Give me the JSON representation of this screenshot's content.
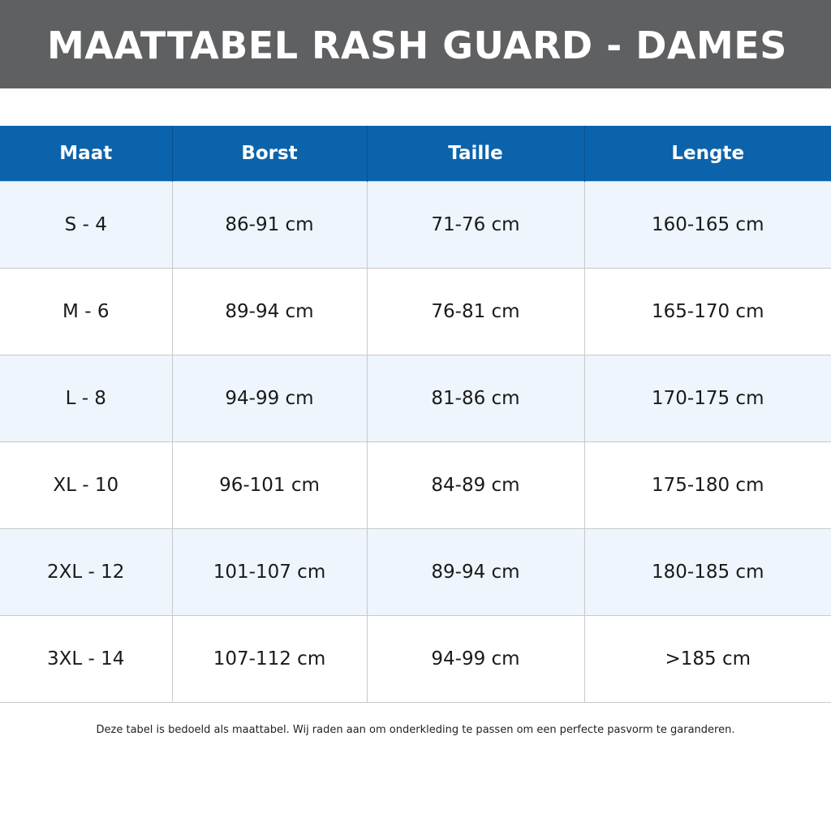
{
  "header": {
    "title": "MAATTABEL RASH GUARD - DAMES"
  },
  "table": {
    "columns": [
      "Maat",
      "Borst",
      "Taille",
      "Lengte"
    ],
    "rows": [
      [
        "S - 4",
        "86-91 cm",
        "71-76 cm",
        "160-165 cm"
      ],
      [
        "M - 6",
        "89-94 cm",
        "76-81 cm",
        "165-170 cm"
      ],
      [
        "L - 8",
        "94-99 cm",
        "81-86 cm",
        "170-175 cm"
      ],
      [
        "XL - 10",
        "96-101 cm",
        "84-89 cm",
        "175-180 cm"
      ],
      [
        "2XL - 12",
        "101-107 cm",
        "89-94 cm",
        "180-185 cm"
      ],
      [
        "3XL - 14",
        "107-112 cm",
        "94-99 cm",
        ">185 cm"
      ]
    ]
  },
  "footer": {
    "note": "Deze tabel is bedoeld als maattabel. Wij raden aan om onderkleding te passen om een perfecte pasvorm te garanderen."
  },
  "colors": {
    "title_bar": "#5f6062",
    "header_row": "#0b63ac",
    "row_tint": "#eef5fc",
    "row_plain": "#ffffff",
    "grid_line": "#c9c9c9"
  }
}
